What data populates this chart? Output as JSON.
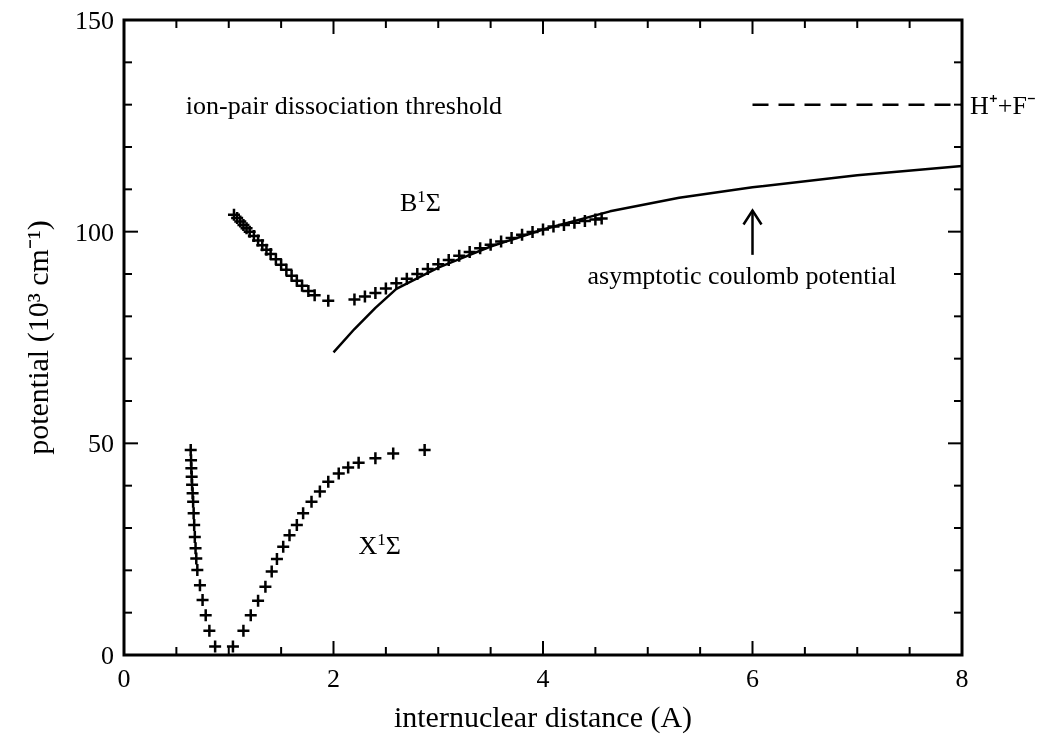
{
  "chart_data": {
    "type": "scatter",
    "xlabel": "internuclear distance (A)",
    "ylabel": "potential (10³ cm⁻¹)",
    "xlim": [
      0,
      8
    ],
    "ylim": [
      0,
      150
    ],
    "xticks": [
      0,
      {
        "value": 0.5,
        "label": null
      },
      {
        "value": 1,
        "label": null
      },
      {
        "value": 1.5,
        "label": null
      },
      2,
      {
        "value": 2.5,
        "label": null
      },
      {
        "value": 3,
        "label": null
      },
      {
        "value": 3.5,
        "label": null
      },
      4,
      {
        "value": 4.5,
        "label": null
      },
      {
        "value": 5,
        "label": null
      },
      {
        "value": 5.5,
        "label": null
      },
      6,
      {
        "value": 6.5,
        "label": null
      },
      {
        "value": 7,
        "label": null
      },
      {
        "value": 7.5,
        "label": null
      },
      8
    ],
    "yticks": [
      0,
      {
        "value": 10,
        "label": null
      },
      {
        "value": 20,
        "label": null
      },
      {
        "value": 30,
        "label": null
      },
      {
        "value": 40,
        "label": null
      },
      50,
      {
        "value": 60,
        "label": null
      },
      {
        "value": 70,
        "label": null
      },
      {
        "value": 80,
        "label": null
      },
      {
        "value": 90,
        "label": null
      },
      100,
      {
        "value": 110,
        "label": null
      },
      {
        "value": 120,
        "label": null
      },
      {
        "value": 130,
        "label": null
      },
      {
        "value": 140,
        "label": null
      },
      150
    ],
    "grid": false,
    "legend": "right",
    "series": [
      {
        "marker": "cross",
        "color": "#000000",
        "x": [
          0.637,
          0.64,
          0.643,
          0.646,
          0.65,
          0.655,
          0.66,
          0.665,
          0.67,
          0.676,
          0.683,
          0.69,
          0.7,
          0.725,
          0.75,
          0.78,
          0.815,
          0.87,
          1.04,
          1.14,
          1.21,
          1.28,
          1.35,
          1.41,
          1.46,
          1.52,
          1.58,
          1.65,
          1.71,
          1.79,
          1.87,
          1.95,
          2.05,
          2.14,
          2.24,
          2.4,
          2.57,
          2.87
        ],
        "values": [
          48.4,
          46,
          44.1,
          42.1,
          40.2,
          38.2,
          36.2,
          33.5,
          30.7,
          27.9,
          25.2,
          22.8,
          20.1,
          16.5,
          13,
          9.4,
          5.7,
          2,
          2,
          5.7,
          9.4,
          12.8,
          16.1,
          19.7,
          22.7,
          25.6,
          28.3,
          30.7,
          33.5,
          36.2,
          38.6,
          40.9,
          42.9,
          44.3,
          45.4,
          46.5,
          47.6,
          48.4
        ]
      },
      {
        "marker": "cross",
        "color": "#000000",
        "x": [
          1.05,
          1.08,
          1.11,
          1.14,
          1.17,
          1.2,
          1.24,
          1.28,
          1.32,
          1.36,
          1.4,
          1.45,
          1.5,
          1.55,
          1.6,
          1.65,
          1.7,
          1.76,
          1.82,
          1.95,
          2.2,
          2.3,
          2.4,
          2.5,
          2.6,
          2.7,
          2.8,
          2.9,
          3.0,
          3.1,
          3.2,
          3.3,
          3.4,
          3.5,
          3.6,
          3.7,
          3.8,
          3.9,
          4.0,
          4.1,
          4.2,
          4.3,
          4.4,
          4.5,
          4.56
        ],
        "values": [
          104,
          103.2,
          102.4,
          101.6,
          100.8,
          100,
          99,
          97.9,
          96.8,
          95.7,
          94.7,
          93.5,
          92.2,
          91,
          89.6,
          88.4,
          87.2,
          86,
          85,
          83.7,
          84,
          84.7,
          85.5,
          86.6,
          87.8,
          88.9,
          90,
          91.2,
          92.3,
          93.3,
          94.3,
          95.2,
          96.1,
          96.9,
          97.7,
          98.5,
          99.3,
          99.9,
          100.5,
          101.2,
          101.6,
          102.1,
          102.5,
          102.9,
          103.1
        ]
      },
      {
        "type": "line",
        "color": "#000000",
        "x": [
          2.0,
          2.2,
          2.4,
          2.6,
          3.0,
          3.5,
          4.0,
          4.64,
          5.3,
          6.0,
          7.0,
          8.0
        ],
        "values": [
          71.5,
          77,
          82,
          86.5,
          91.5,
          96.5,
          100.5,
          104.8,
          108,
          110.5,
          113.3,
          115.5
        ]
      },
      {
        "type": "line",
        "name": "H⁺+F⁻",
        "line_style": "dashed",
        "color": "#000000",
        "x": [
          6,
          8
        ],
        "values": [
          130,
          130
        ]
      }
    ],
    "annotations": [
      "ion-pair dissociation threshold",
      "B$^{1}$Σ",
      "X$^{1}$Σ",
      "asymptotic coulomb potential"
    ]
  }
}
